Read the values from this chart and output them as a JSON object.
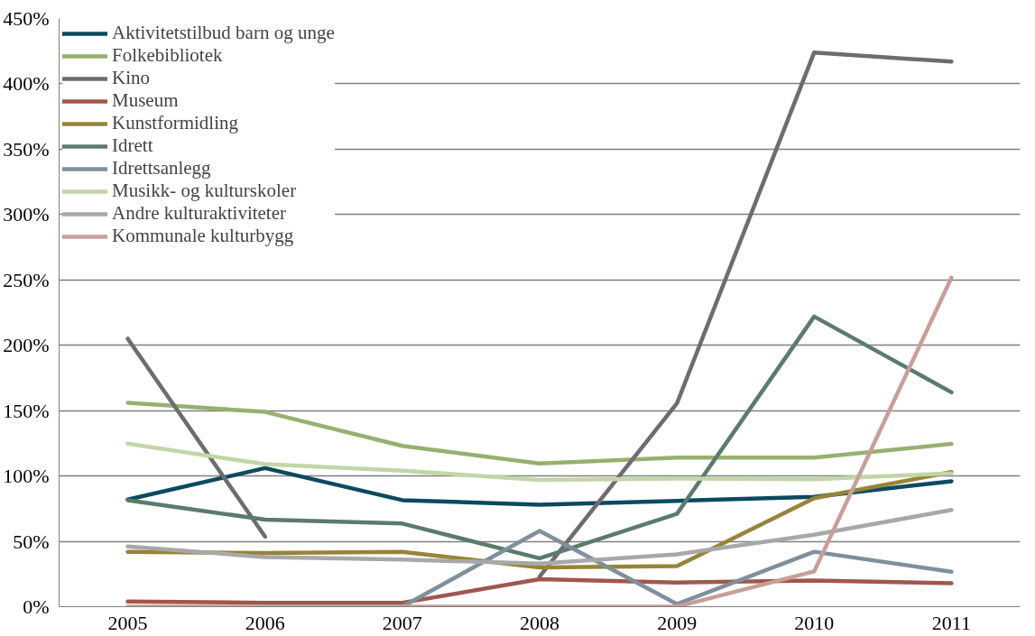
{
  "chart_data": {
    "type": "line",
    "categories": [
      "2005",
      "2006",
      "2007",
      "2008",
      "2009",
      "2010",
      "2011"
    ],
    "ylim": [
      0,
      450
    ],
    "yticks": [
      {
        "value": 0,
        "label": "0%"
      },
      {
        "value": 50,
        "label": "50%"
      },
      {
        "value": 100,
        "label": "100%"
      },
      {
        "value": 150,
        "label": "150%"
      },
      {
        "value": 200,
        "label": "200%"
      },
      {
        "value": 250,
        "label": "250%"
      },
      {
        "value": 300,
        "label": "300%"
      },
      {
        "value": 350,
        "label": "350%"
      },
      {
        "value": 400,
        "label": "400%"
      },
      {
        "value": 450,
        "label": "450%"
      }
    ],
    "grid": "y",
    "legend": "top left",
    "marker": "none",
    "line_style": "solid",
    "series": [
      {
        "name": "Aktivitetstilbud barn og unge",
        "color": "#0b4a60",
        "values": [
          82,
          106,
          81.5,
          78,
          81,
          84,
          96
        ]
      },
      {
        "name": "Folkebibliotek",
        "color": "#98b06f",
        "values": [
          156,
          149,
          123,
          109.5,
          114,
          114,
          124.5
        ]
      },
      {
        "name": "Kino",
        "color": "#6e6c72",
        "values": [
          205,
          53.6,
          null,
          23,
          155.5,
          424,
          417
        ]
      },
      {
        "name": "Museum",
        "color": "#a0574e",
        "values": [
          4,
          3,
          3,
          21,
          18.5,
          20,
          18
        ]
      },
      {
        "name": "Kunstformidling",
        "color": "#968438",
        "values": [
          42,
          41,
          42,
          30,
          31,
          83,
          103
        ]
      },
      {
        "name": "Idrett",
        "color": "#5b7b6b",
        "values": [
          81.5,
          66.6,
          63.6,
          37,
          71,
          222,
          164
        ]
      },
      {
        "name": "Idrettsanlegg",
        "color": "#7e909c",
        "values": [
          null,
          null,
          0,
          58,
          2,
          42,
          26.7
        ]
      },
      {
        "name": "Musikk- og kulturskoler",
        "color": "#c2d6a6",
        "values": [
          124.7,
          109,
          104,
          97,
          98,
          97.5,
          102
        ]
      },
      {
        "name": "Andre kulturaktiviteter",
        "color": "#a8a8a8",
        "values": [
          46,
          38,
          36,
          33,
          40,
          55,
          74
        ]
      },
      {
        "name": "Kommunale kulturbygg",
        "color": "#c79f98",
        "values": [
          0,
          0,
          0,
          0,
          0,
          27,
          251.7
        ]
      }
    ]
  }
}
